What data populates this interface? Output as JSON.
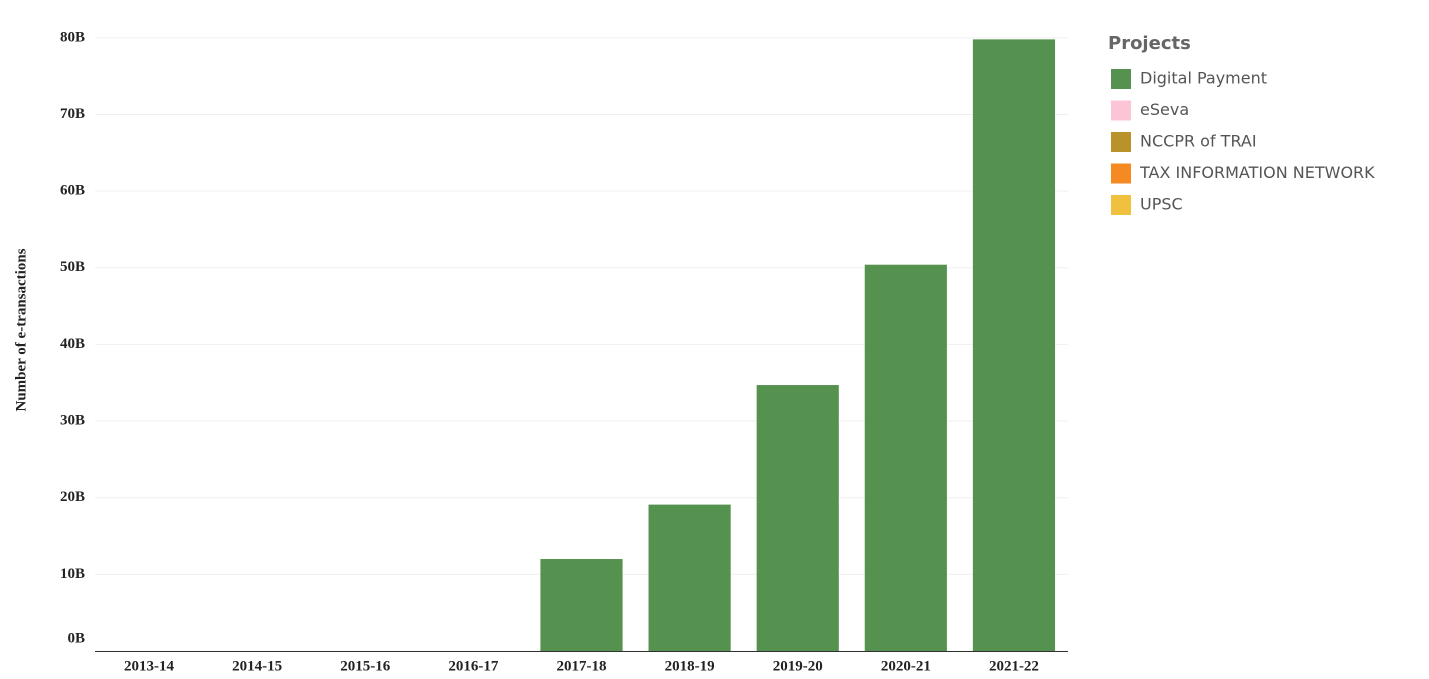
{
  "chart_data": {
    "type": "stacked_bar",
    "y_label": "Number of e-transactions",
    "legend_title": "Projects",
    "categories": [
      "2013-14",
      "2014-15",
      "2015-16",
      "2016-17",
      "2017-18",
      "2018-19",
      "2019-20",
      "2020-21",
      "2021-22"
    ],
    "series": [
      {
        "name": "Digital Payment",
        "color": "#55924f",
        "values": [
          0,
          0,
          0,
          0,
          12000000000,
          19100000000,
          34700000000,
          50400000000,
          79800000000
        ]
      },
      {
        "name": "eSeva",
        "color": "#fcc5d5",
        "values": [
          0,
          0,
          0,
          0,
          0,
          0,
          0,
          0,
          0
        ]
      },
      {
        "name": "NCCPR of TRAI",
        "color": "#b9932a",
        "values": [
          0,
          0,
          0,
          0,
          0,
          0,
          0,
          0,
          0
        ]
      },
      {
        "name": "TAX INFORMATION NETWORK",
        "color": "#f58a22",
        "values": [
          0,
          0,
          0,
          0,
          0,
          0,
          0,
          0,
          0
        ]
      },
      {
        "name": "UPSC",
        "color": "#efc13e",
        "values": [
          0,
          0,
          0,
          0,
          0,
          0,
          0,
          0,
          0
        ]
      }
    ],
    "ylim": [
      0,
      80500000000
    ],
    "yticks": [
      {
        "value": 0,
        "label": "0B"
      },
      {
        "value": 10000000000,
        "label": "10B"
      },
      {
        "value": 20000000000,
        "label": "20B"
      },
      {
        "value": 30000000000,
        "label": "30B"
      },
      {
        "value": 40000000000,
        "label": "40B"
      },
      {
        "value": 50000000000,
        "label": "50B"
      },
      {
        "value": 60000000000,
        "label": "60B"
      },
      {
        "value": 70000000000,
        "label": "70B"
      },
      {
        "value": 80000000000,
        "label": "80B"
      }
    ],
    "grid": true,
    "legend": "right"
  }
}
